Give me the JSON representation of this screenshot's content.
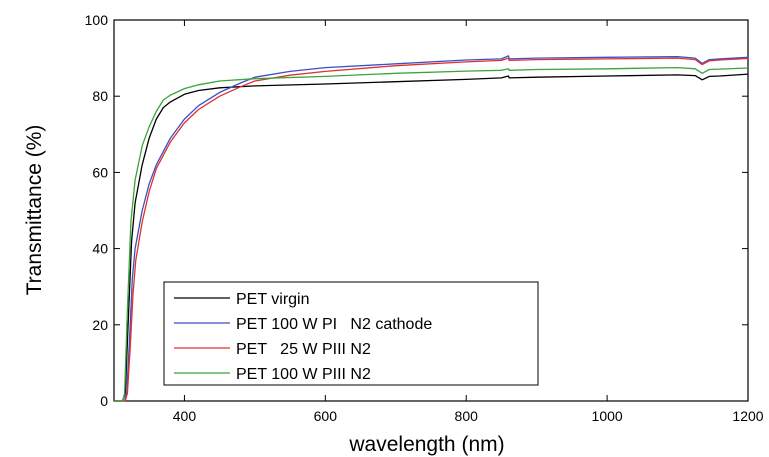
{
  "chart_data": {
    "type": "line",
    "title": "",
    "xlabel": "wavelength (nm)",
    "ylabel": "Transmittance (%)",
    "xlim": [
      300,
      1200
    ],
    "ylim": [
      0,
      100
    ],
    "xticks": [
      400,
      600,
      800,
      1000,
      1200
    ],
    "yticks": [
      0,
      20,
      40,
      60,
      80,
      100
    ],
    "grid": false,
    "legend_position": "bottom-left",
    "series": [
      {
        "name": "PET virgin",
        "color": "#000000",
        "points": [
          [
            300,
            0
          ],
          [
            312,
            0
          ],
          [
            316,
            2
          ],
          [
            320,
            20
          ],
          [
            325,
            42
          ],
          [
            330,
            52
          ],
          [
            340,
            62
          ],
          [
            350,
            69
          ],
          [
            360,
            74
          ],
          [
            370,
            77
          ],
          [
            380,
            78.5
          ],
          [
            400,
            80.5
          ],
          [
            420,
            81.5
          ],
          [
            450,
            82.2
          ],
          [
            500,
            82.7
          ],
          [
            600,
            83.2
          ],
          [
            700,
            83.8
          ],
          [
            800,
            84.4
          ],
          [
            850,
            84.8
          ],
          [
            860,
            85.3
          ],
          [
            861,
            84.8
          ],
          [
            900,
            85
          ],
          [
            1000,
            85.3
          ],
          [
            1100,
            85.6
          ],
          [
            1125,
            85.4
          ],
          [
            1135,
            84.3
          ],
          [
            1145,
            85.2
          ],
          [
            1160,
            85.3
          ],
          [
            1200,
            85.8
          ]
        ]
      },
      {
        "name": "PET 100 W PI   N2 cathode",
        "color": "#3b4fc4",
        "points": [
          [
            300,
            0
          ],
          [
            315,
            0
          ],
          [
            318,
            2
          ],
          [
            322,
            16
          ],
          [
            326,
            32
          ],
          [
            330,
            40
          ],
          [
            340,
            50
          ],
          [
            350,
            57
          ],
          [
            360,
            62
          ],
          [
            380,
            69
          ],
          [
            400,
            74
          ],
          [
            420,
            77.5
          ],
          [
            450,
            81
          ],
          [
            480,
            83.5
          ],
          [
            500,
            85
          ],
          [
            550,
            86.5
          ],
          [
            600,
            87.5
          ],
          [
            700,
            88.5
          ],
          [
            800,
            89.5
          ],
          [
            850,
            89.8
          ],
          [
            860,
            90.6
          ],
          [
            861,
            89.8
          ],
          [
            900,
            90
          ],
          [
            1000,
            90.2
          ],
          [
            1100,
            90.4
          ],
          [
            1125,
            90
          ],
          [
            1135,
            88.6
          ],
          [
            1145,
            89.6
          ],
          [
            1160,
            89.8
          ],
          [
            1200,
            90.2
          ]
        ]
      },
      {
        "name": "PET   25 W PIII N2",
        "color": "#e03030",
        "points": [
          [
            300,
            0
          ],
          [
            316,
            0
          ],
          [
            319,
            2
          ],
          [
            323,
            14
          ],
          [
            327,
            28
          ],
          [
            331,
            37
          ],
          [
            340,
            47
          ],
          [
            350,
            55
          ],
          [
            360,
            61
          ],
          [
            380,
            68
          ],
          [
            400,
            73
          ],
          [
            420,
            76.5
          ],
          [
            450,
            80
          ],
          [
            480,
            82.5
          ],
          [
            500,
            84
          ],
          [
            550,
            85.5
          ],
          [
            600,
            86.5
          ],
          [
            700,
            88
          ],
          [
            800,
            89
          ],
          [
            850,
            89.4
          ],
          [
            860,
            90
          ],
          [
            861,
            89.4
          ],
          [
            900,
            89.6
          ],
          [
            1000,
            89.8
          ],
          [
            1100,
            90
          ],
          [
            1125,
            89.6
          ],
          [
            1135,
            88.3
          ],
          [
            1145,
            89.3
          ],
          [
            1160,
            89.5
          ],
          [
            1200,
            89.9
          ]
        ]
      },
      {
        "name": "PET 100 W PIII N2",
        "color": "#3aa53a",
        "points": [
          [
            300,
            0
          ],
          [
            312,
            0
          ],
          [
            315,
            2
          ],
          [
            319,
            24
          ],
          [
            324,
            47
          ],
          [
            330,
            58
          ],
          [
            340,
            67
          ],
          [
            350,
            72
          ],
          [
            360,
            76
          ],
          [
            370,
            79
          ],
          [
            380,
            80.3
          ],
          [
            400,
            82
          ],
          [
            420,
            83
          ],
          [
            450,
            84
          ],
          [
            500,
            84.6
          ],
          [
            600,
            85.2
          ],
          [
            700,
            86
          ],
          [
            800,
            86.6
          ],
          [
            850,
            86.8
          ],
          [
            860,
            87.2
          ],
          [
            861,
            86.8
          ],
          [
            900,
            87
          ],
          [
            1000,
            87.2
          ],
          [
            1100,
            87.5
          ],
          [
            1125,
            87.2
          ],
          [
            1135,
            86
          ],
          [
            1145,
            87
          ],
          [
            1160,
            87.1
          ],
          [
            1200,
            87.4
          ]
        ]
      }
    ]
  }
}
